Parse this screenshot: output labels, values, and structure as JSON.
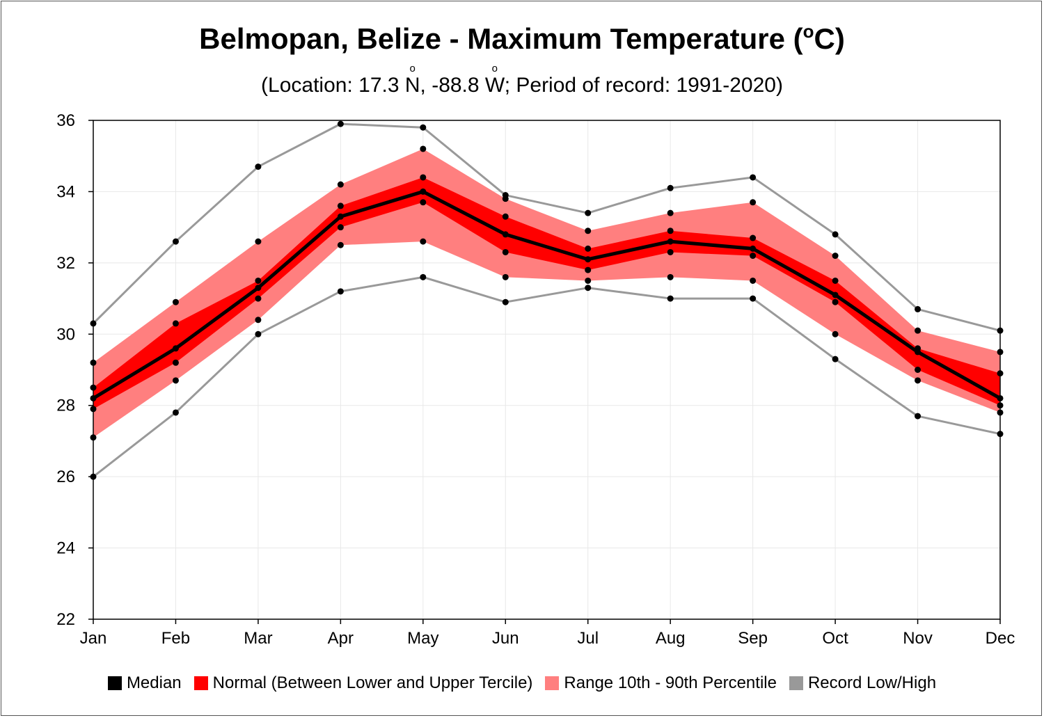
{
  "chart_data": {
    "type": "area",
    "title": "Belmopan, Belize - Maximum Temperature (",
    "title_sup": "o",
    "title_end": "C)",
    "subtitle_parts": [
      "(Location: 17.3 ",
      "N",
      ", -88.8 ",
      "W",
      "; Period of record: 1991-2020)"
    ],
    "categories": [
      "Jan",
      "Feb",
      "Mar",
      "Apr",
      "May",
      "Jun",
      "Jul",
      "Aug",
      "Sep",
      "Oct",
      "Nov",
      "Dec"
    ],
    "ylim": [
      22,
      36
    ],
    "yticks": [
      22,
      24,
      26,
      28,
      30,
      32,
      34,
      36
    ],
    "grid": true,
    "legend_position": "bottom",
    "series": [
      {
        "name": "Record High",
        "values": [
          30.3,
          32.6,
          34.7,
          35.9,
          35.8,
          33.9,
          33.4,
          34.1,
          34.4,
          32.8,
          30.7,
          30.1
        ]
      },
      {
        "name": "90th Percentile",
        "values": [
          29.2,
          30.9,
          32.6,
          34.2,
          35.2,
          33.8,
          32.9,
          33.4,
          33.7,
          32.2,
          30.1,
          29.5
        ]
      },
      {
        "name": "Upper Tercile",
        "values": [
          28.5,
          30.3,
          31.5,
          33.6,
          34.4,
          33.3,
          32.4,
          32.9,
          32.7,
          31.5,
          29.6,
          28.9
        ]
      },
      {
        "name": "Median",
        "values": [
          28.2,
          29.6,
          31.3,
          33.3,
          34.0,
          32.8,
          32.1,
          32.6,
          32.4,
          31.1,
          29.5,
          28.2
        ]
      },
      {
        "name": "Lower Tercile",
        "values": [
          27.9,
          29.2,
          31.0,
          33.0,
          33.7,
          32.3,
          31.8,
          32.3,
          32.2,
          30.9,
          29.0,
          28.0
        ]
      },
      {
        "name": "10th Percentile",
        "values": [
          27.1,
          28.7,
          30.4,
          32.5,
          32.6,
          31.6,
          31.5,
          31.6,
          31.5,
          30.0,
          28.7,
          27.8
        ]
      },
      {
        "name": "Record Low",
        "values": [
          26.0,
          27.8,
          30.0,
          31.2,
          31.6,
          30.9,
          31.3,
          31.0,
          31.0,
          29.3,
          27.7,
          27.2
        ]
      }
    ],
    "legend": [
      {
        "label": "Median",
        "color": "#000000"
      },
      {
        "label": "Normal (Between Lower and Upper Tercile)",
        "color": "#ff0000"
      },
      {
        "label": "Range 10th - 90th Percentile",
        "color": "#ff7f7f"
      },
      {
        "label": "Record Low/High",
        "color": "#999999"
      }
    ]
  }
}
